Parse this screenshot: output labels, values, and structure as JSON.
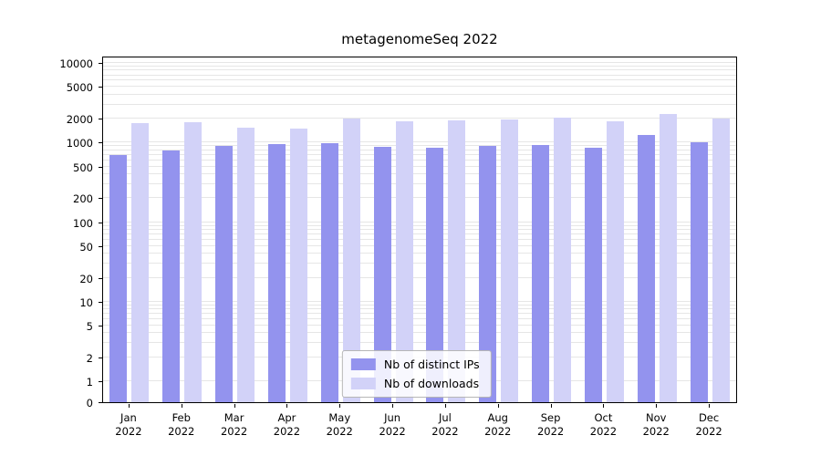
{
  "chart_data": {
    "type": "bar",
    "title": "metagenomeSeq 2022",
    "categories": [
      "Jan 2022",
      "Feb 2022",
      "Mar 2022",
      "Apr 2022",
      "May 2022",
      "Jun 2022",
      "Jul 2022",
      "Aug 2022",
      "Sep 2022",
      "Oct 2022",
      "Nov 2022",
      "Dec 2022"
    ],
    "series": [
      {
        "name": "Nb of distinct IPs",
        "color": "#9393ee",
        "values": [
          700,
          800,
          900,
          950,
          980,
          880,
          850,
          900,
          930,
          870,
          1250,
          1000
        ]
      },
      {
        "name": "Nb of downloads",
        "color": "#d2d2f8",
        "values": [
          1750,
          1800,
          1550,
          1500,
          2000,
          1850,
          1900,
          1950,
          2050,
          1850,
          2300,
          2000
        ]
      }
    ],
    "xlabel": "",
    "ylabel": "",
    "yscale": "log-with-zero",
    "yticks": [
      0,
      1,
      2,
      5,
      10,
      20,
      50,
      100,
      200,
      500,
      1000,
      2000,
      5000,
      10000
    ],
    "ylim": [
      0,
      10000
    ],
    "grid": true,
    "grid_color": "#e6e6e6",
    "legend_position": "lower center"
  }
}
